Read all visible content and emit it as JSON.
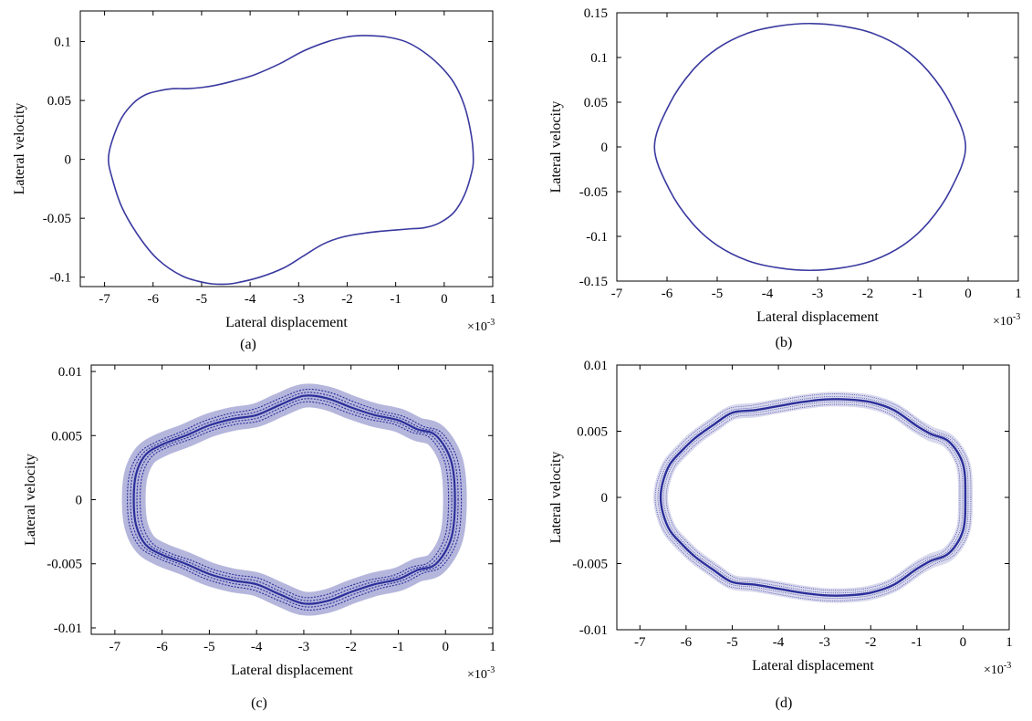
{
  "colors": {
    "line": "#3a3aa0",
    "dense": "#2b2f9a",
    "frame": "#000000"
  },
  "chart_data": [
    {
      "type": "line",
      "panel_label": "(a)",
      "xlabel": "Lateral displacement",
      "ylabel": "Lateral velocity",
      "x_multiplier": "×10",
      "x_multiplier_exp": "-3",
      "xlim": [
        -7.5,
        1
      ],
      "ylim": [
        -0.108,
        0.126
      ],
      "xticks": [
        -7,
        -6,
        -5,
        -4,
        -3,
        -2,
        -1,
        0,
        1
      ],
      "yticks": [
        -0.1,
        -0.05,
        0,
        0.05,
        0.1
      ],
      "ytick_labels": [
        "-0.1",
        "-0.05",
        "0",
        "0.05",
        "0.1"
      ],
      "series": [
        {
          "x": [
            0.6,
            0.56,
            0.42,
            0.2,
            -0.1,
            -0.45,
            -0.8,
            -1.2,
            -1.55,
            -1.75,
            -2.0,
            -2.4,
            -2.9,
            -3.4,
            -3.9,
            -4.3,
            -4.7,
            -5.0,
            -5.3,
            -5.6,
            -5.9,
            -6.15,
            -6.4,
            -6.65,
            -6.85,
            -6.92,
            -6.85,
            -6.65,
            -6.3,
            -5.9,
            -5.4,
            -4.9,
            -4.55,
            -4.3,
            -3.8,
            -3.3,
            -2.9,
            -2.5,
            -2.1,
            -1.7,
            -1.3,
            -1.0,
            -0.7,
            -0.4,
            -0.1,
            0.2,
            0.42,
            0.56,
            0.6
          ],
          "y": [
            0.0,
            0.02,
            0.045,
            0.065,
            0.08,
            0.092,
            0.1,
            0.104,
            0.105,
            0.105,
            0.104,
            0.1,
            0.092,
            0.081,
            0.072,
            0.067,
            0.063,
            0.061,
            0.06,
            0.06,
            0.058,
            0.055,
            0.048,
            0.035,
            0.015,
            0.0,
            -0.015,
            -0.04,
            -0.065,
            -0.085,
            -0.099,
            -0.105,
            -0.106,
            -0.105,
            -0.1,
            -0.092,
            -0.082,
            -0.072,
            -0.066,
            -0.063,
            -0.061,
            -0.06,
            -0.059,
            -0.058,
            -0.054,
            -0.045,
            -0.03,
            -0.012,
            0.0
          ]
        }
      ]
    },
    {
      "type": "line",
      "panel_label": "(b)",
      "xlabel": "Lateral displacement",
      "ylabel": "Lateral velocity",
      "x_multiplier": "×10",
      "x_multiplier_exp": "-3",
      "xlim": [
        -7,
        1
      ],
      "ylim": [
        -0.15,
        0.15
      ],
      "xticks": [
        -7,
        -6,
        -5,
        -4,
        -3,
        -2,
        -1,
        0,
        1
      ],
      "yticks": [
        -0.15,
        -0.1,
        -0.05,
        0,
        0.05,
        0.1,
        0.15
      ],
      "ytick_labels": [
        "-0.15",
        "-0.1",
        "-0.05",
        "0",
        "0.05",
        "0.1",
        "0.15"
      ],
      "series": [
        {
          "x": [
            -0.05,
            -0.35,
            -0.8,
            -1.3,
            -1.9,
            -2.5,
            -3.15,
            -3.8,
            -4.4,
            -5.0,
            -5.5,
            -5.95,
            -6.25,
            -5.95,
            -5.5,
            -5.0,
            -4.4,
            -3.8,
            -3.15,
            -2.5,
            -1.9,
            -1.3,
            -0.8,
            -0.35,
            -0.05
          ],
          "y": [
            0.0,
            0.048,
            0.085,
            0.11,
            0.127,
            0.135,
            0.138,
            0.135,
            0.127,
            0.11,
            0.085,
            0.048,
            0.0,
            -0.048,
            -0.085,
            -0.11,
            -0.127,
            -0.135,
            -0.138,
            -0.135,
            -0.127,
            -0.11,
            -0.085,
            -0.048,
            0.0
          ]
        }
      ]
    },
    {
      "type": "line",
      "panel_label": "(c)",
      "xlabel": "Lateral displacement",
      "ylabel": "Lateral velocity",
      "x_multiplier": "×10",
      "x_multiplier_exp": "-3",
      "xlim": [
        -7.5,
        1
      ],
      "ylim": [
        -0.0105,
        0.0105
      ],
      "xticks": [
        -7,
        -6,
        -5,
        -4,
        -3,
        -2,
        -1,
        0,
        1
      ],
      "yticks": [
        -0.01,
        -0.005,
        0,
        0.005,
        0.01
      ],
      "ytick_labels": [
        "-0.01",
        "-0.005",
        "0",
        "0.005",
        "0.01"
      ],
      "series": [
        {
          "x": [
            0.2,
            0.12,
            -0.2,
            -0.6,
            -1.0,
            -1.5,
            -2.0,
            -2.5,
            -3.0,
            -3.5,
            -4.0,
            -4.5,
            -5.0,
            -5.5,
            -6.0,
            -6.35,
            -6.55,
            -6.6,
            -6.55,
            -6.35,
            -6.0,
            -5.5,
            -5.0,
            -4.5,
            -4.0,
            -3.5,
            -3.0,
            -2.5,
            -2.0,
            -1.5,
            -1.0,
            -0.6,
            -0.2,
            0.12,
            0.2
          ],
          "y": [
            0.0,
            0.003,
            0.005,
            0.0055,
            0.0062,
            0.0066,
            0.0072,
            0.0079,
            0.0081,
            0.0074,
            0.0066,
            0.0063,
            0.0058,
            0.005,
            0.0043,
            0.0035,
            0.002,
            0.0,
            -0.002,
            -0.0035,
            -0.0043,
            -0.005,
            -0.0058,
            -0.0063,
            -0.0066,
            -0.0074,
            -0.0081,
            -0.0079,
            -0.0072,
            -0.0066,
            -0.0062,
            -0.0055,
            -0.005,
            -0.003,
            0.0
          ]
        }
      ]
    },
    {
      "type": "line",
      "panel_label": "(d)",
      "xlabel": "Lateral displacement",
      "ylabel": "Lateral velocity",
      "x_multiplier": "×10",
      "x_multiplier_exp": "-3",
      "xlim": [
        -7.5,
        1
      ],
      "ylim": [
        -0.01,
        0.01
      ],
      "xticks": [
        -7,
        -6,
        -5,
        -4,
        -3,
        -2,
        -1,
        0,
        1
      ],
      "yticks": [
        -0.01,
        -0.005,
        0,
        0.005,
        0.01
      ],
      "ytick_labels": [
        "-0.01",
        "-0.005",
        "0",
        "0.005",
        "0.01"
      ],
      "series": [
        {
          "x": [
            0.05,
            0.0,
            -0.3,
            -0.7,
            -1.0,
            -1.5,
            -2.0,
            -2.5,
            -3.0,
            -3.5,
            -4.0,
            -4.5,
            -5.0,
            -5.4,
            -5.8,
            -6.1,
            -6.35,
            -6.5,
            -6.55,
            -6.5,
            -6.35,
            -6.1,
            -5.8,
            -5.4,
            -5.0,
            -4.5,
            -4.0,
            -3.5,
            -3.0,
            -2.5,
            -2.0,
            -1.5,
            -1.0,
            -0.7,
            -0.3,
            0.0,
            0.05
          ],
          "y": [
            0.0,
            0.0025,
            0.0042,
            0.0048,
            0.0054,
            0.0066,
            0.0072,
            0.0074,
            0.0074,
            0.0072,
            0.0069,
            0.0066,
            0.0064,
            0.0055,
            0.0045,
            0.0035,
            0.0025,
            0.0012,
            0.0,
            -0.0012,
            -0.0025,
            -0.0035,
            -0.0045,
            -0.0055,
            -0.0064,
            -0.0066,
            -0.0069,
            -0.0072,
            -0.0074,
            -0.0074,
            -0.0072,
            -0.0066,
            -0.0054,
            -0.0048,
            -0.0042,
            -0.0025,
            0.0
          ]
        }
      ]
    }
  ]
}
